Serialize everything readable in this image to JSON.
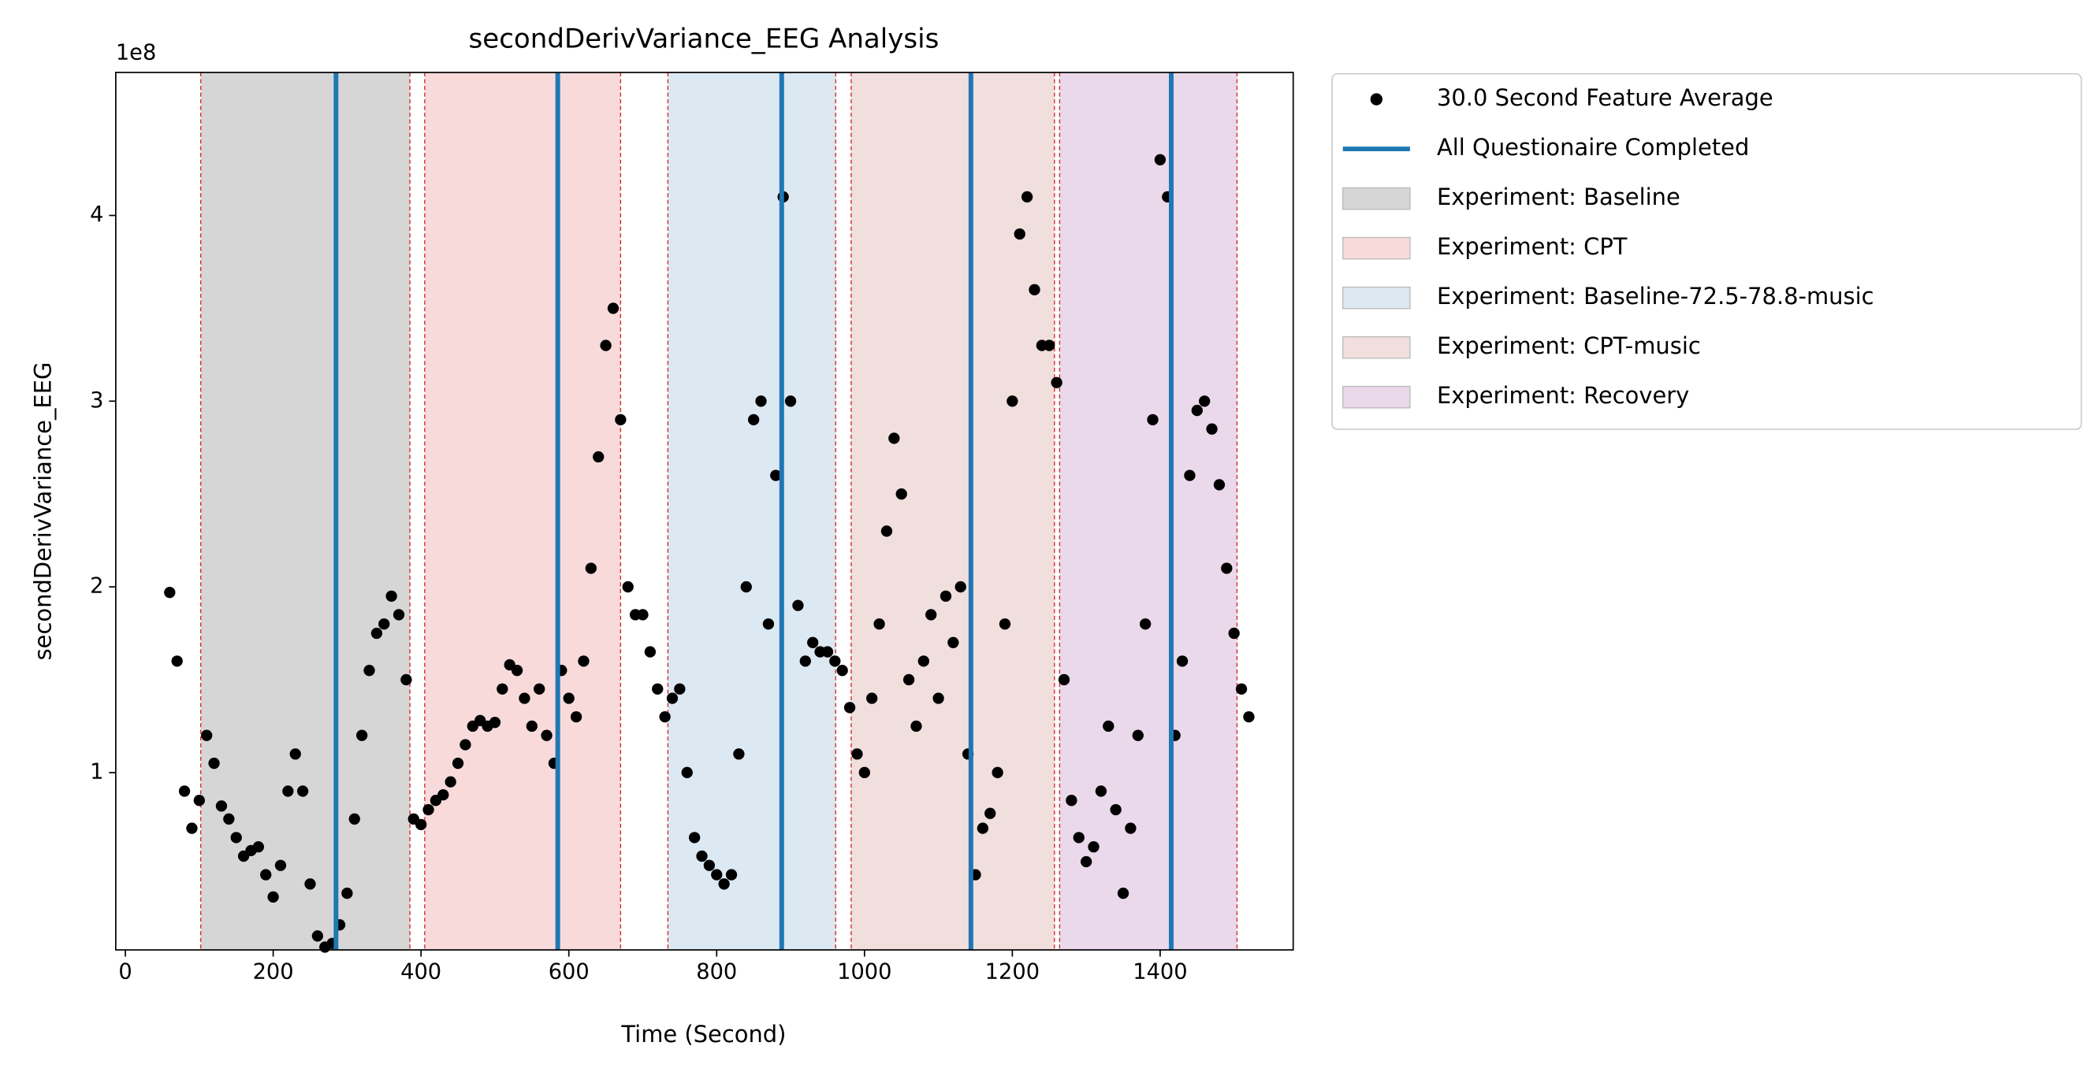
{
  "chart_data": {
    "type": "scatter",
    "title": "secondDerivVariance_EEG Analysis",
    "xlabel": "Time (Second)",
    "ylabel": "secondDerivVariance_EEG",
    "y_offset_label": "1e8",
    "x": [
      60,
      70,
      80,
      90,
      100,
      110,
      120,
      130,
      140,
      150,
      160,
      170,
      180,
      190,
      200,
      210,
      220,
      230,
      240,
      250,
      260,
      270,
      280,
      290,
      300,
      310,
      320,
      330,
      340,
      350,
      360,
      370,
      380,
      390,
      400,
      410,
      420,
      430,
      440,
      450,
      460,
      470,
      480,
      490,
      500,
      510,
      520,
      530,
      540,
      550,
      560,
      570,
      580,
      590,
      600,
      610,
      620,
      630,
      640,
      650,
      660,
      670,
      680,
      690,
      700,
      710,
      720,
      730,
      740,
      750,
      760,
      770,
      780,
      790,
      800,
      810,
      820,
      830,
      840,
      850,
      860,
      870,
      880,
      890,
      900,
      910,
      920,
      930,
      940,
      950,
      960,
      970,
      980,
      990,
      1000,
      1010,
      1020,
      1030,
      1040,
      1050,
      1060,
      1070,
      1080,
      1090,
      1100,
      1110,
      1120,
      1130,
      1140,
      1150,
      1160,
      1170,
      1180,
      1190,
      1200,
      1210,
      1220,
      1230,
      1240,
      1250,
      1260,
      1270,
      1280,
      1290,
      1300,
      1310,
      1320,
      1330,
      1340,
      1350,
      1360,
      1370,
      1380,
      1390,
      1400,
      1410,
      1420,
      1430,
      1440,
      1450,
      1460,
      1470,
      1480,
      1490,
      1500,
      1510,
      1520
    ],
    "series": [
      {
        "name": "30.0 Second Feature Average",
        "color": "#000000",
        "values": [
          1.97,
          1.6,
          0.9,
          0.7,
          0.85,
          1.2,
          1.05,
          0.82,
          0.75,
          0.65,
          0.55,
          0.58,
          0.6,
          0.45,
          0.33,
          0.5,
          0.9,
          1.1,
          0.9,
          0.4,
          0.12,
          0.06,
          0.08,
          0.18,
          0.35,
          0.75,
          1.2,
          1.55,
          1.75,
          1.8,
          1.95,
          1.85,
          1.5,
          0.75,
          0.72,
          0.8,
          0.85,
          0.88,
          0.95,
          1.05,
          1.15,
          1.25,
          1.28,
          1.25,
          1.27,
          1.45,
          1.58,
          1.55,
          1.4,
          1.25,
          1.45,
          1.2,
          1.05,
          1.55,
          1.4,
          1.3,
          1.6,
          2.1,
          2.7,
          3.3,
          3.5,
          2.9,
          2.0,
          1.85,
          1.85,
          1.65,
          1.45,
          1.3,
          1.4,
          1.45,
          1.0,
          0.65,
          0.55,
          0.5,
          0.45,
          0.4,
          0.45,
          1.1,
          2.0,
          2.9,
          3.0,
          1.8,
          2.6,
          4.1,
          3.0,
          1.9,
          1.6,
          1.7,
          1.65,
          1.65,
          1.6,
          1.55,
          1.35,
          1.1,
          1.0,
          1.4,
          1.8,
          2.3,
          2.8,
          2.5,
          1.5,
          1.25,
          1.6,
          1.85,
          1.4,
          1.95,
          1.7,
          2.0,
          1.1,
          0.45,
          0.7,
          0.78,
          1.0,
          1.8,
          3.0,
          3.9,
          4.1,
          3.6,
          3.3,
          3.3,
          3.1,
          1.5,
          0.85,
          0.65,
          0.52,
          0.6,
          0.9,
          1.25,
          0.8,
          0.35,
          0.7,
          1.2,
          1.8,
          2.9,
          4.3,
          4.1,
          1.2,
          1.6,
          2.6,
          2.95,
          3.0,
          2.85,
          2.55,
          2.1,
          1.75,
          1.45,
          1.3
        ]
      }
    ],
    "vlines": {
      "name": "All Questionaire Completed",
      "color": "#1f77b4",
      "x": [
        285,
        585,
        888,
        1144,
        1415
      ]
    },
    "spans": [
      {
        "name": "Experiment: Baseline",
        "color": "#d6d6d6",
        "start": 102,
        "end": 385
      },
      {
        "name": "Experiment: CPT",
        "color": "#f8dadb",
        "start": 405,
        "end": 670
      },
      {
        "name": "Experiment: Baseline-72.5-78.8-music",
        "color": "#dce8f2",
        "start": 734,
        "end": 961
      },
      {
        "name": "Experiment: CPT-music",
        "color": "#f0dfdd",
        "start": 982,
        "end": 1257
      },
      {
        "name": "Experiment: Recovery",
        "color": "#ead8eb",
        "start": 1264,
        "end": 1504
      }
    ],
    "xlim": [
      -13,
      1580
    ],
    "ylim": [
      0.045,
      4.77
    ],
    "xticks": [
      0,
      200,
      400,
      600,
      800,
      1000,
      1200,
      1400
    ],
    "yticks": [
      1,
      2,
      3,
      4
    ],
    "legend": "outside upper right"
  }
}
